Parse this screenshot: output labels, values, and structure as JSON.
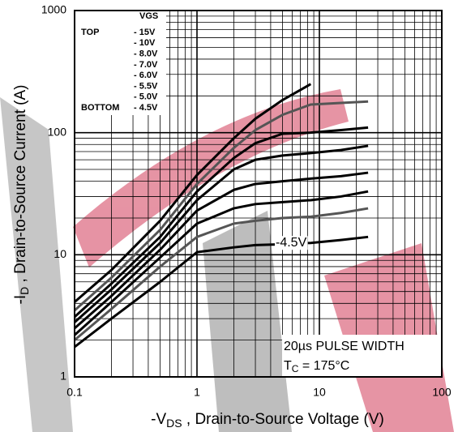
{
  "chart_data": {
    "type": "line",
    "x_label": [
      "-V",
      "DS",
      " , Drain-to-Source Voltage (V)"
    ],
    "y_label": [
      "-I",
      "D",
      " , Drain-to-Source Current (A)"
    ],
    "x_log": true,
    "y_log": true,
    "grid": true,
    "xlim": [
      0.1,
      100
    ],
    "ylim": [
      1,
      1000
    ],
    "xticks": [
      0.1,
      1,
      10,
      100
    ],
    "yticks": [
      1,
      10,
      100,
      1000
    ],
    "legend_title": "VGS",
    "legend_top_label": "TOP",
    "legend_bottom_label": "BOTTOM",
    "x": [
      0.1,
      0.2,
      0.5,
      1,
      2,
      3,
      5,
      8.5,
      15,
      25
    ],
    "series": [
      {
        "name": "- 15V",
        "color": "#000000",
        "values": [
          4.1,
          7.5,
          19,
          45,
          90,
          130,
          185,
          250,
          null,
          null
        ]
      },
      {
        "name": "- 10V",
        "color": "#555555",
        "values": [
          3.5,
          6.5,
          16,
          38,
          75,
          105,
          140,
          170,
          175,
          180
        ]
      },
      {
        "name": "- 8.0V",
        "color": "#000000",
        "values": [
          3.1,
          5.8,
          14,
          33,
          62,
          82,
          98,
          100,
          105,
          110
        ]
      },
      {
        "name": "- 7.0V",
        "color": "#000000",
        "values": [
          2.8,
          5.2,
          12.5,
          28,
          50,
          60,
          65,
          68,
          72,
          78
        ]
      },
      {
        "name": "- 6.0V",
        "color": "#000000",
        "values": [
          2.5,
          4.6,
          11,
          23,
          34,
          38,
          40,
          42,
          44,
          47
        ]
      },
      {
        "name": "- 5.5V",
        "color": "#000000",
        "values": [
          2.2,
          4.1,
          9.5,
          18,
          24,
          26,
          27,
          28,
          30,
          33
        ]
      },
      {
        "name": "- 5.0V",
        "color": "#555555",
        "values": [
          2.0,
          3.6,
          8,
          14,
          18,
          19,
          20,
          20.5,
          22,
          24
        ]
      },
      {
        "name": "- 4.5V",
        "color": "#000000",
        "values": [
          1.76,
          3.0,
          6,
          10.5,
          11.5,
          12,
          12.2,
          12.5,
          13.2,
          14
        ]
      }
    ],
    "annotation": "-4.5V",
    "note_pulse": "20µs PULSE WIDTH",
    "note_temp": [
      "T",
      "C",
      " = 175°C"
    ]
  }
}
